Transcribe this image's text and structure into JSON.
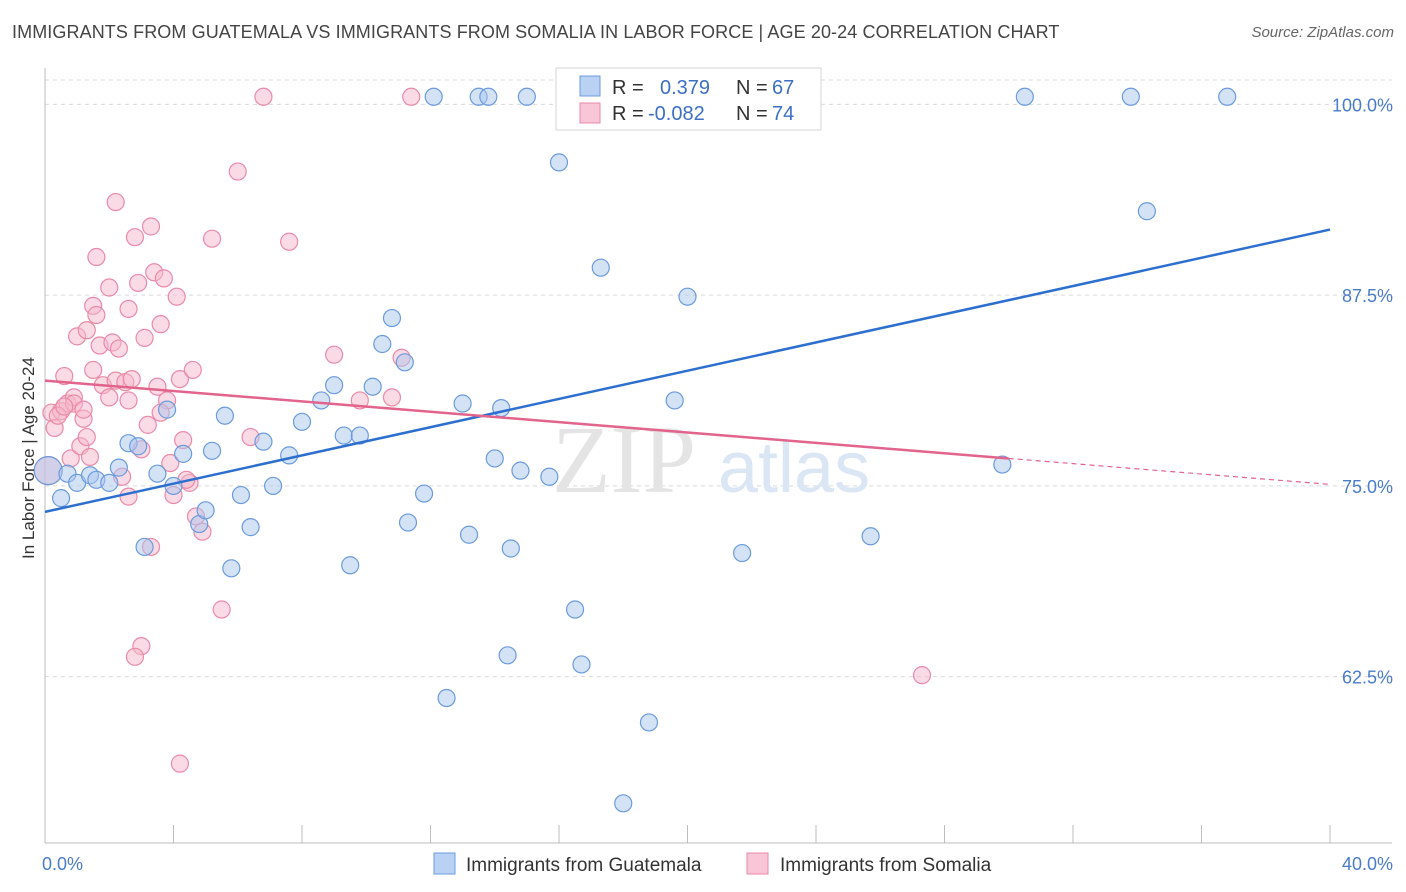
{
  "title": "IMMIGRANTS FROM GUATEMALA VS IMMIGRANTS FROM SOMALIA IN LABOR FORCE | AGE 20-24 CORRELATION CHART",
  "source": "Source: ZipAtlas.com",
  "watermark": {
    "zip": "ZIP",
    "atlas": "atlas"
  },
  "colors": {
    "blue_fill": "#a9c6ee",
    "blue_stroke": "#6b9bdc",
    "blue_line": "#2c6fcf",
    "pink_fill": "#f5b8cb",
    "pink_stroke": "#ea8aa8",
    "pink_line": "#e2638b",
    "grid": "#d9d9d9",
    "tick_label": "#4a7cc9"
  },
  "legend": {
    "rows": [
      {
        "r_label": "R =",
        "r_value": "0.379",
        "n_label": "N =",
        "n_value": "67"
      },
      {
        "r_label": "R =",
        "r_value": "-0.082",
        "n_label": "N =",
        "n_value": "74"
      }
    ]
  },
  "chart_data": {
    "type": "scatter",
    "ylabel": "In Labor Force | Age 20-24",
    "xlim": [
      0,
      40
    ],
    "ylim": [
      51.6,
      101.6
    ],
    "x_tick_labels": [
      "0.0%",
      "40.0%"
    ],
    "y_ticks": [
      62.5,
      75.0,
      87.5,
      100.0
    ],
    "y_tick_labels": [
      "62.5%",
      "75.0%",
      "87.5%",
      "100.0%"
    ],
    "grid": "horizontal dashed",
    "series": [
      {
        "name": "Immigrants from Guatemala",
        "color": "blue",
        "trend": {
          "x": [
            0,
            40
          ],
          "y": [
            73.3,
            91.8
          ],
          "dashed_from": null
        },
        "points": [
          [
            0.1,
            76.0
          ],
          [
            0.5,
            74.2
          ],
          [
            0.7,
            75.8
          ],
          [
            1.0,
            75.2
          ],
          [
            1.4,
            75.7
          ],
          [
            1.6,
            75.4
          ],
          [
            2.0,
            75.2
          ],
          [
            2.3,
            76.2
          ],
          [
            2.6,
            77.8
          ],
          [
            2.9,
            77.6
          ],
          [
            3.1,
            71.0
          ],
          [
            3.5,
            75.8
          ],
          [
            3.8,
            80.0
          ],
          [
            4.0,
            75.0
          ],
          [
            4.3,
            77.1
          ],
          [
            4.8,
            72.5
          ],
          [
            5.0,
            73.4
          ],
          [
            5.2,
            77.3
          ],
          [
            5.6,
            79.6
          ],
          [
            5.8,
            69.6
          ],
          [
            6.1,
            74.4
          ],
          [
            6.4,
            72.3
          ],
          [
            6.8,
            77.9
          ],
          [
            7.1,
            75.0
          ],
          [
            7.6,
            77.0
          ],
          [
            8.0,
            79.2
          ],
          [
            8.6,
            80.6
          ],
          [
            9.0,
            81.6
          ],
          [
            9.3,
            78.3
          ],
          [
            9.5,
            69.8
          ],
          [
            9.8,
            78.3
          ],
          [
            10.2,
            81.5
          ],
          [
            10.5,
            84.3
          ],
          [
            10.8,
            86.0
          ],
          [
            11.3,
            72.6
          ],
          [
            11.2,
            83.1
          ],
          [
            11.8,
            74.5
          ],
          [
            12.5,
            61.1
          ],
          [
            13.0,
            80.4
          ],
          [
            13.2,
            71.8
          ],
          [
            14.0,
            76.8
          ],
          [
            14.2,
            80.1
          ],
          [
            14.4,
            63.9
          ],
          [
            14.5,
            70.9
          ],
          [
            14.8,
            76.0
          ],
          [
            15.7,
            75.6
          ],
          [
            16.0,
            96.2
          ],
          [
            16.5,
            66.9
          ],
          [
            16.7,
            63.3
          ],
          [
            17.3,
            89.3
          ],
          [
            18.0,
            54.2
          ],
          [
            18.8,
            59.5
          ],
          [
            19.6,
            80.6
          ],
          [
            20.0,
            87.4
          ],
          [
            21.7,
            70.6
          ],
          [
            25.7,
            71.7
          ],
          [
            29.8,
            76.4
          ],
          [
            34.3,
            93.0
          ],
          [
            12.1,
            100.5
          ],
          [
            13.5,
            100.5
          ],
          [
            13.8,
            100.5
          ],
          [
            19.0,
            100.5
          ],
          [
            19.5,
            100.5
          ],
          [
            30.5,
            100.5
          ],
          [
            33.8,
            100.5
          ],
          [
            36.8,
            100.5
          ],
          [
            15.0,
            100.5
          ]
        ]
      },
      {
        "name": "Immigrants from Somalia",
        "color": "pink",
        "trend": {
          "x": [
            0,
            40
          ],
          "y": [
            81.9,
            75.1
          ],
          "dashed_from": 30.0
        },
        "points": [
          [
            0.1,
            76.0
          ],
          [
            0.2,
            79.8
          ],
          [
            0.3,
            78.8
          ],
          [
            0.5,
            79.9
          ],
          [
            0.6,
            82.2
          ],
          [
            0.7,
            80.4
          ],
          [
            0.8,
            76.8
          ],
          [
            0.9,
            80.8
          ],
          [
            1.0,
            84.8
          ],
          [
            1.1,
            77.6
          ],
          [
            1.2,
            79.4
          ],
          [
            1.3,
            85.2
          ],
          [
            1.4,
            76.9
          ],
          [
            1.5,
            82.6
          ],
          [
            1.5,
            86.8
          ],
          [
            1.6,
            86.2
          ],
          [
            1.7,
            84.2
          ],
          [
            1.8,
            81.6
          ],
          [
            1.6,
            90.0
          ],
          [
            2.0,
            80.8
          ],
          [
            2.1,
            84.4
          ],
          [
            2.2,
            81.9
          ],
          [
            2.0,
            88.0
          ],
          [
            2.3,
            84.0
          ],
          [
            2.5,
            81.8
          ],
          [
            2.2,
            93.6
          ],
          [
            2.6,
            80.6
          ],
          [
            2.6,
            86.6
          ],
          [
            2.4,
            75.6
          ],
          [
            2.6,
            74.3
          ],
          [
            2.8,
            91.3
          ],
          [
            2.9,
            88.3
          ],
          [
            3.1,
            84.7
          ],
          [
            3.2,
            79.0
          ],
          [
            3.3,
            92.0
          ],
          [
            3.4,
            89.0
          ],
          [
            3.5,
            81.5
          ],
          [
            3.6,
            85.6
          ],
          [
            3.7,
            88.6
          ],
          [
            3.8,
            80.6
          ],
          [
            3.9,
            76.5
          ],
          [
            4.0,
            74.4
          ],
          [
            4.1,
            87.4
          ],
          [
            4.2,
            82.0
          ],
          [
            4.3,
            78.0
          ],
          [
            4.5,
            75.2
          ],
          [
            4.6,
            82.6
          ],
          [
            4.7,
            73.0
          ],
          [
            4.9,
            72.0
          ],
          [
            5.2,
            91.2
          ],
          [
            5.5,
            66.9
          ],
          [
            6.0,
            95.6
          ],
          [
            6.4,
            78.2
          ],
          [
            6.8,
            100.5
          ],
          [
            7.6,
            91.0
          ],
          [
            9.0,
            83.6
          ],
          [
            9.8,
            80.6
          ],
          [
            10.8,
            80.8
          ],
          [
            11.1,
            83.4
          ],
          [
            11.4,
            100.5
          ],
          [
            3.0,
            64.5
          ],
          [
            2.8,
            63.8
          ],
          [
            4.2,
            56.8
          ],
          [
            3.3,
            71.0
          ],
          [
            27.3,
            62.6
          ],
          [
            0.4,
            79.6
          ],
          [
            0.9,
            80.4
          ],
          [
            1.2,
            80.0
          ],
          [
            3.0,
            77.4
          ],
          [
            2.7,
            82.0
          ],
          [
            4.4,
            75.4
          ],
          [
            0.6,
            80.2
          ],
          [
            1.3,
            78.2
          ],
          [
            3.6,
            79.8
          ]
        ]
      }
    ]
  }
}
